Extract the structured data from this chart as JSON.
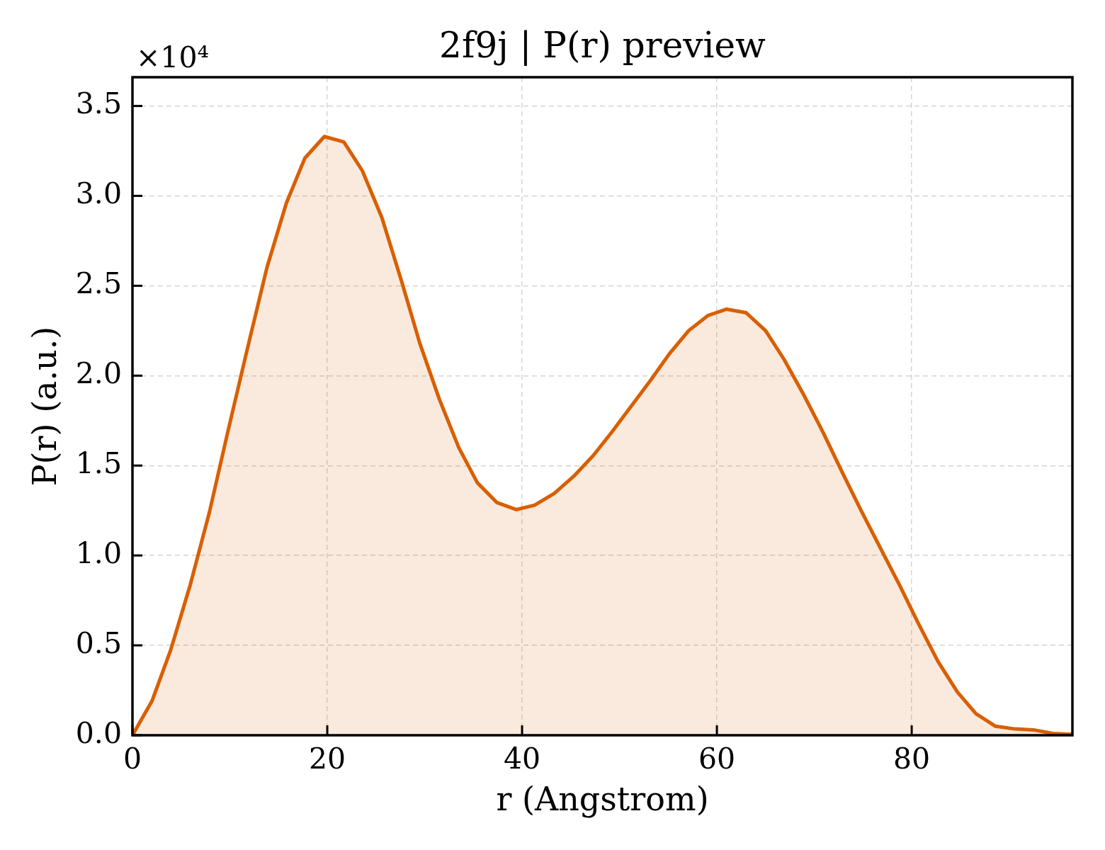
{
  "chart_data": {
    "type": "area",
    "title": "2f9j | P(r) preview",
    "xlabel": "r (Angstrom)",
    "ylabel": "P(r) (a.u.)",
    "annotations": [
      "×10⁴"
    ],
    "x": [
      0,
      2.0,
      3.9,
      5.9,
      7.9,
      9.8,
      11.8,
      13.8,
      15.8,
      17.7,
      19.7,
      21.7,
      23.6,
      25.6,
      27.6,
      29.5,
      31.5,
      33.5,
      35.4,
      37.4,
      39.4,
      41.3,
      43.3,
      45.3,
      47.3,
      49.2,
      51.2,
      53.2,
      55.1,
      57.1,
      59.1,
      61.0,
      63.0,
      65.0,
      66.9,
      68.9,
      70.9,
      72.8,
      74.8,
      76.8,
      78.8,
      80.7,
      82.7,
      84.7,
      86.6,
      88.6,
      90.6,
      92.5,
      94.5,
      96.5
    ],
    "series": [
      {
        "color": "#d95f02",
        "values": [
          0,
          0.19,
          0.47,
          0.83,
          1.24,
          1.69,
          2.15,
          2.6,
          2.96,
          3.21,
          3.33,
          3.3,
          3.14,
          2.88,
          2.53,
          2.18,
          1.87,
          1.6,
          1.405,
          1.295,
          1.255,
          1.28,
          1.345,
          1.44,
          1.555,
          1.685,
          1.83,
          1.975,
          2.12,
          2.25,
          2.335,
          2.37,
          2.35,
          2.25,
          2.09,
          1.895,
          1.685,
          1.47,
          1.25,
          1.04,
          0.83,
          0.62,
          0.41,
          0.24,
          0.12,
          0.05,
          0.035,
          0.03,
          0.01,
          0.005
        ]
      }
    ],
    "xlim": [
      0,
      96.5
    ],
    "ylim": [
      0,
      3.66
    ],
    "xticks": [
      0,
      20,
      40,
      60,
      80
    ],
    "yticks": [
      {
        "value": 0,
        "label": "0.0"
      },
      0.5,
      {
        "value": 1,
        "label": "1.0"
      },
      1.5,
      {
        "value": 2,
        "label": "2.0"
      },
      2.5,
      {
        "value": 3,
        "label": "3.0"
      },
      3.5
    ],
    "grid": true
  }
}
